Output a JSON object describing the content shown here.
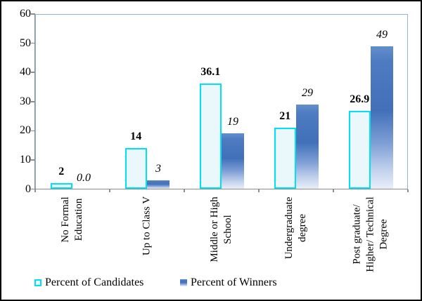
{
  "chart_data": {
    "type": "bar",
    "title": "",
    "xlabel": "",
    "ylabel": "",
    "grid": false,
    "legend_position": "bottom",
    "ylim": [
      0,
      60
    ],
    "yticks": [
      "0",
      "10",
      "20",
      "30",
      "40",
      "50",
      "60"
    ],
    "ytick_values": [
      0,
      10,
      20,
      30,
      40,
      50,
      60
    ],
    "categories": [
      "No Formal\nEducation",
      "Up to Class V",
      "Middle or High\nSchool",
      "Undergraduate\ndegree",
      "Post graduate/\nHigher/ Technical\nDegree"
    ],
    "series": [
      {
        "name": "Percent of Candidates",
        "values": [
          2,
          14,
          36.1,
          21,
          26.9
        ],
        "value_labels": [
          "2",
          "14",
          "36.1",
          "21",
          "26.9"
        ],
        "label_style": "bold"
      },
      {
        "name": "Percent of Winners",
        "values": [
          0,
          3,
          19,
          29,
          49
        ],
        "value_labels": [
          "0.0",
          "3",
          "19",
          "29",
          "49"
        ],
        "label_style": "italic"
      }
    ]
  },
  "colors": {
    "background": "#ffffff",
    "frame_border": "#000000",
    "plot_border": "#95b3d7",
    "axis": "#8c8c8c",
    "text": "#000000",
    "candidates_fill": "#eaf8fc",
    "candidates_border": "#00e2f2",
    "winners_gradient_top": "#6390cb",
    "winners_gradient_upper": "#4d7cc2",
    "winners_gradient_mid": "#4170b9",
    "winners_gradient_lower": "#7e9ed5",
    "winners_gradient_faded": "#bfcfeb",
    "winners_gradient_bottom": "#e9eef9"
  }
}
